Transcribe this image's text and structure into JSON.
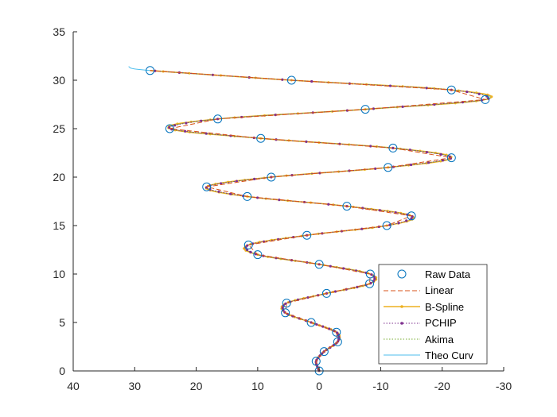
{
  "chart_data": {
    "type": "line",
    "title": "",
    "xlabel": "",
    "ylabel": "",
    "xlim": [
      40,
      -30
    ],
    "ylim": [
      0,
      35
    ],
    "x_reversed": true,
    "xticks": [
      40,
      30,
      20,
      10,
      0,
      -10,
      -20,
      -30
    ],
    "yticks": [
      0,
      5,
      10,
      15,
      20,
      25,
      30,
      35
    ],
    "xtick_labels": [
      "40",
      "30",
      "20",
      "10",
      "0",
      "-10",
      "-20",
      "-30"
    ],
    "ytick_labels": [
      "0",
      "5",
      "10",
      "15",
      "20",
      "25",
      "30",
      "35"
    ],
    "grid": false,
    "legend_position": "bottom-right",
    "raw_points": [
      [
        0,
        0
      ],
      [
        0.5,
        1
      ],
      [
        -0.8,
        2
      ],
      [
        -3,
        3
      ],
      [
        -2.8,
        4
      ],
      [
        1.3,
        5
      ],
      [
        5.5,
        6
      ],
      [
        5.3,
        7
      ],
      [
        -1.2,
        8
      ],
      [
        -8.2,
        9
      ],
      [
        -8.3,
        10
      ],
      [
        0,
        11
      ],
      [
        10,
        12
      ],
      [
        11.5,
        13
      ],
      [
        2,
        14
      ],
      [
        -11,
        15
      ],
      [
        -15,
        16
      ],
      [
        -4.5,
        17
      ],
      [
        11.7,
        18
      ],
      [
        18.3,
        19
      ],
      [
        7.8,
        20
      ],
      [
        -11.2,
        21
      ],
      [
        -21.5,
        22
      ],
      [
        -12,
        23
      ],
      [
        9.5,
        24
      ],
      [
        24.3,
        25
      ],
      [
        16.5,
        26
      ],
      [
        -7.5,
        27
      ],
      [
        -27,
        28
      ],
      [
        -21.5,
        29
      ],
      [
        4.5,
        30
      ],
      [
        27.5,
        31
      ]
    ],
    "theo_extension": [
      [
        31,
        31.4
      ]
    ],
    "series": [
      {
        "name": "Raw Data",
        "style": "marker-circle",
        "color": "#0072BD"
      },
      {
        "name": "Linear",
        "style": "dashed",
        "color": "#D95319"
      },
      {
        "name": "B-Spline",
        "style": "solid-dots",
        "color": "#EDB120"
      },
      {
        "name": "PCHIP",
        "style": "dotted-dots",
        "color": "#7E2F8E"
      },
      {
        "name": "Akima",
        "style": "dotted",
        "color": "#77AC30"
      },
      {
        "name": "Theo Curv",
        "style": "solid",
        "color": "#4DBEEE"
      }
    ]
  }
}
